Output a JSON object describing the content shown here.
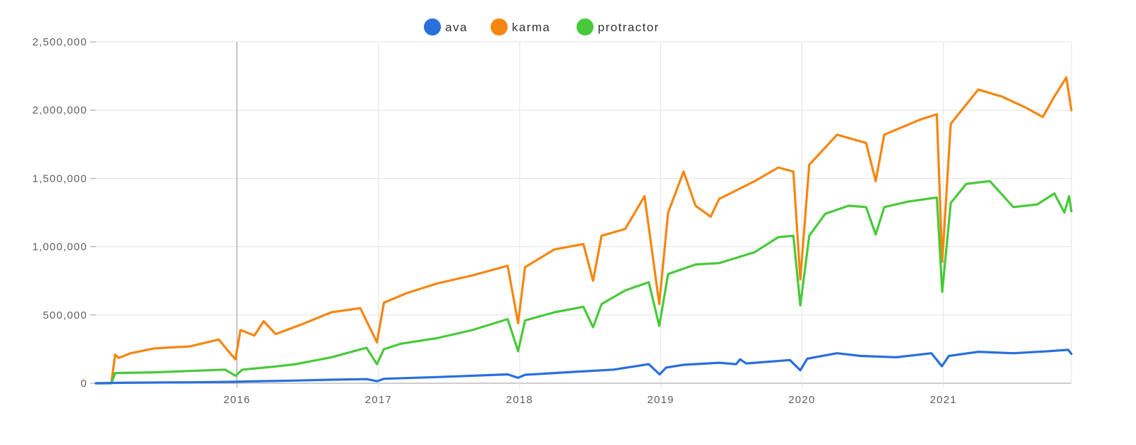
{
  "chart_data": {
    "type": "line",
    "title": "",
    "xlabel": "",
    "ylabel": "",
    "ylim": [
      0,
      2500000
    ],
    "y_ticks": [
      0,
      500000,
      1000000,
      1500000,
      2000000,
      2500000
    ],
    "y_tick_labels": [
      "0",
      "500,000",
      "1,000,000",
      "1,500,000",
      "2,000,000",
      "2,500,000"
    ],
    "x_range": [
      "2015-01-01",
      "2021-11-28"
    ],
    "x_ticks": [
      "2016-01-01",
      "2017-01-01",
      "2018-01-01",
      "2019-01-01",
      "2020-01-01",
      "2021-01-01"
    ],
    "x_tick_labels": [
      "2016",
      "2017",
      "2018",
      "2019",
      "2020",
      "2021"
    ],
    "grid": true,
    "legend_position": "top-center",
    "series": [
      {
        "name": "ava",
        "color": "#2a6fdb",
        "points": [
          [
            "2015-01-01",
            0
          ],
          [
            "2015-03-01",
            3000
          ],
          [
            "2015-06-01",
            5000
          ],
          [
            "2015-09-01",
            7000
          ],
          [
            "2015-12-01",
            10000
          ],
          [
            "2016-03-01",
            15000
          ],
          [
            "2016-06-01",
            20000
          ],
          [
            "2016-09-01",
            26000
          ],
          [
            "2016-12-01",
            30000
          ],
          [
            "2016-12-28",
            15000
          ],
          [
            "2017-01-15",
            33000
          ],
          [
            "2017-06-01",
            45000
          ],
          [
            "2017-12-01",
            65000
          ],
          [
            "2017-12-28",
            40000
          ],
          [
            "2018-01-15",
            62000
          ],
          [
            "2018-06-01",
            85000
          ],
          [
            "2018-09-01",
            100000
          ],
          [
            "2018-12-01",
            140000
          ],
          [
            "2018-12-29",
            65000
          ],
          [
            "2019-01-15",
            115000
          ],
          [
            "2019-03-01",
            135000
          ],
          [
            "2019-06-01",
            150000
          ],
          [
            "2019-07-15",
            140000
          ],
          [
            "2019-07-25",
            175000
          ],
          [
            "2019-08-10",
            145000
          ],
          [
            "2019-12-01",
            170000
          ],
          [
            "2019-12-28",
            95000
          ],
          [
            "2020-01-15",
            180000
          ],
          [
            "2020-04-01",
            220000
          ],
          [
            "2020-06-01",
            200000
          ],
          [
            "2020-09-01",
            190000
          ],
          [
            "2020-12-01",
            220000
          ],
          [
            "2020-12-28",
            125000
          ],
          [
            "2021-01-15",
            200000
          ],
          [
            "2021-04-01",
            230000
          ],
          [
            "2021-07-01",
            220000
          ],
          [
            "2021-10-01",
            235000
          ],
          [
            "2021-11-20",
            245000
          ],
          [
            "2021-11-28",
            215000
          ]
        ]
      },
      {
        "name": "karma",
        "color": "#f5860f",
        "points": [
          [
            "2015-01-01",
            0
          ],
          [
            "2015-02-10",
            0
          ],
          [
            "2015-02-20",
            210000
          ],
          [
            "2015-03-01",
            185000
          ],
          [
            "2015-04-01",
            220000
          ],
          [
            "2015-06-01",
            255000
          ],
          [
            "2015-09-01",
            270000
          ],
          [
            "2015-11-15",
            320000
          ],
          [
            "2015-12-05",
            250000
          ],
          [
            "2015-12-28",
            175000
          ],
          [
            "2016-01-10",
            390000
          ],
          [
            "2016-02-15",
            350000
          ],
          [
            "2016-03-10",
            455000
          ],
          [
            "2016-04-10",
            360000
          ],
          [
            "2016-06-15",
            430000
          ],
          [
            "2016-09-01",
            520000
          ],
          [
            "2016-11-15",
            550000
          ],
          [
            "2016-12-28",
            300000
          ],
          [
            "2017-01-15",
            590000
          ],
          [
            "2017-03-15",
            660000
          ],
          [
            "2017-06-01",
            730000
          ],
          [
            "2017-09-01",
            790000
          ],
          [
            "2017-12-01",
            860000
          ],
          [
            "2017-12-28",
            440000
          ],
          [
            "2018-01-15",
            850000
          ],
          [
            "2018-04-01",
            980000
          ],
          [
            "2018-06-15",
            1020000
          ],
          [
            "2018-07-10",
            750000
          ],
          [
            "2018-08-01",
            1080000
          ],
          [
            "2018-10-01",
            1130000
          ],
          [
            "2018-11-20",
            1370000
          ],
          [
            "2018-12-28",
            580000
          ],
          [
            "2019-01-20",
            1250000
          ],
          [
            "2019-03-01",
            1550000
          ],
          [
            "2019-04-01",
            1300000
          ],
          [
            "2019-05-10",
            1220000
          ],
          [
            "2019-06-01",
            1350000
          ],
          [
            "2019-09-01",
            1480000
          ],
          [
            "2019-11-01",
            1580000
          ],
          [
            "2019-12-10",
            1550000
          ],
          [
            "2019-12-28",
            760000
          ],
          [
            "2020-01-20",
            1600000
          ],
          [
            "2020-04-01",
            1820000
          ],
          [
            "2020-06-15",
            1760000
          ],
          [
            "2020-07-10",
            1480000
          ],
          [
            "2020-08-01",
            1820000
          ],
          [
            "2020-11-01",
            1930000
          ],
          [
            "2020-12-15",
            1970000
          ],
          [
            "2020-12-29",
            890000
          ],
          [
            "2021-01-20",
            1900000
          ],
          [
            "2021-04-01",
            2150000
          ],
          [
            "2021-06-01",
            2100000
          ],
          [
            "2021-08-01",
            2020000
          ],
          [
            "2021-09-15",
            1950000
          ],
          [
            "2021-10-15",
            2100000
          ],
          [
            "2021-11-15",
            2240000
          ],
          [
            "2021-11-28",
            2000000
          ]
        ]
      },
      {
        "name": "protractor",
        "color": "#48c93a",
        "points": [
          [
            "2015-01-01",
            0
          ],
          [
            "2015-02-10",
            0
          ],
          [
            "2015-02-20",
            75000
          ],
          [
            "2015-06-01",
            80000
          ],
          [
            "2015-09-01",
            90000
          ],
          [
            "2015-12-01",
            100000
          ],
          [
            "2015-12-28",
            55000
          ],
          [
            "2016-01-15",
            100000
          ],
          [
            "2016-04-01",
            120000
          ],
          [
            "2016-06-01",
            140000
          ],
          [
            "2016-09-01",
            190000
          ],
          [
            "2016-12-01",
            260000
          ],
          [
            "2016-12-28",
            140000
          ],
          [
            "2017-01-15",
            250000
          ],
          [
            "2017-03-01",
            290000
          ],
          [
            "2017-06-01",
            330000
          ],
          [
            "2017-09-01",
            390000
          ],
          [
            "2017-12-01",
            470000
          ],
          [
            "2017-12-28",
            235000
          ],
          [
            "2018-01-15",
            460000
          ],
          [
            "2018-04-01",
            520000
          ],
          [
            "2018-06-15",
            560000
          ],
          [
            "2018-07-10",
            410000
          ],
          [
            "2018-08-01",
            580000
          ],
          [
            "2018-10-01",
            680000
          ],
          [
            "2018-12-01",
            740000
          ],
          [
            "2018-12-28",
            420000
          ],
          [
            "2019-01-20",
            800000
          ],
          [
            "2019-04-01",
            870000
          ],
          [
            "2019-06-01",
            880000
          ],
          [
            "2019-09-01",
            960000
          ],
          [
            "2019-11-01",
            1070000
          ],
          [
            "2019-12-10",
            1080000
          ],
          [
            "2019-12-28",
            570000
          ],
          [
            "2020-01-20",
            1080000
          ],
          [
            "2020-03-01",
            1240000
          ],
          [
            "2020-05-01",
            1300000
          ],
          [
            "2020-06-15",
            1290000
          ],
          [
            "2020-07-10",
            1090000
          ],
          [
            "2020-08-01",
            1290000
          ],
          [
            "2020-10-01",
            1330000
          ],
          [
            "2020-12-15",
            1360000
          ],
          [
            "2020-12-29",
            670000
          ],
          [
            "2021-01-20",
            1320000
          ],
          [
            "2021-03-01",
            1460000
          ],
          [
            "2021-05-01",
            1480000
          ],
          [
            "2021-07-01",
            1290000
          ],
          [
            "2021-09-01",
            1310000
          ],
          [
            "2021-10-15",
            1390000
          ],
          [
            "2021-11-10",
            1250000
          ],
          [
            "2021-11-22",
            1370000
          ],
          [
            "2021-11-28",
            1260000
          ]
        ]
      }
    ]
  }
}
